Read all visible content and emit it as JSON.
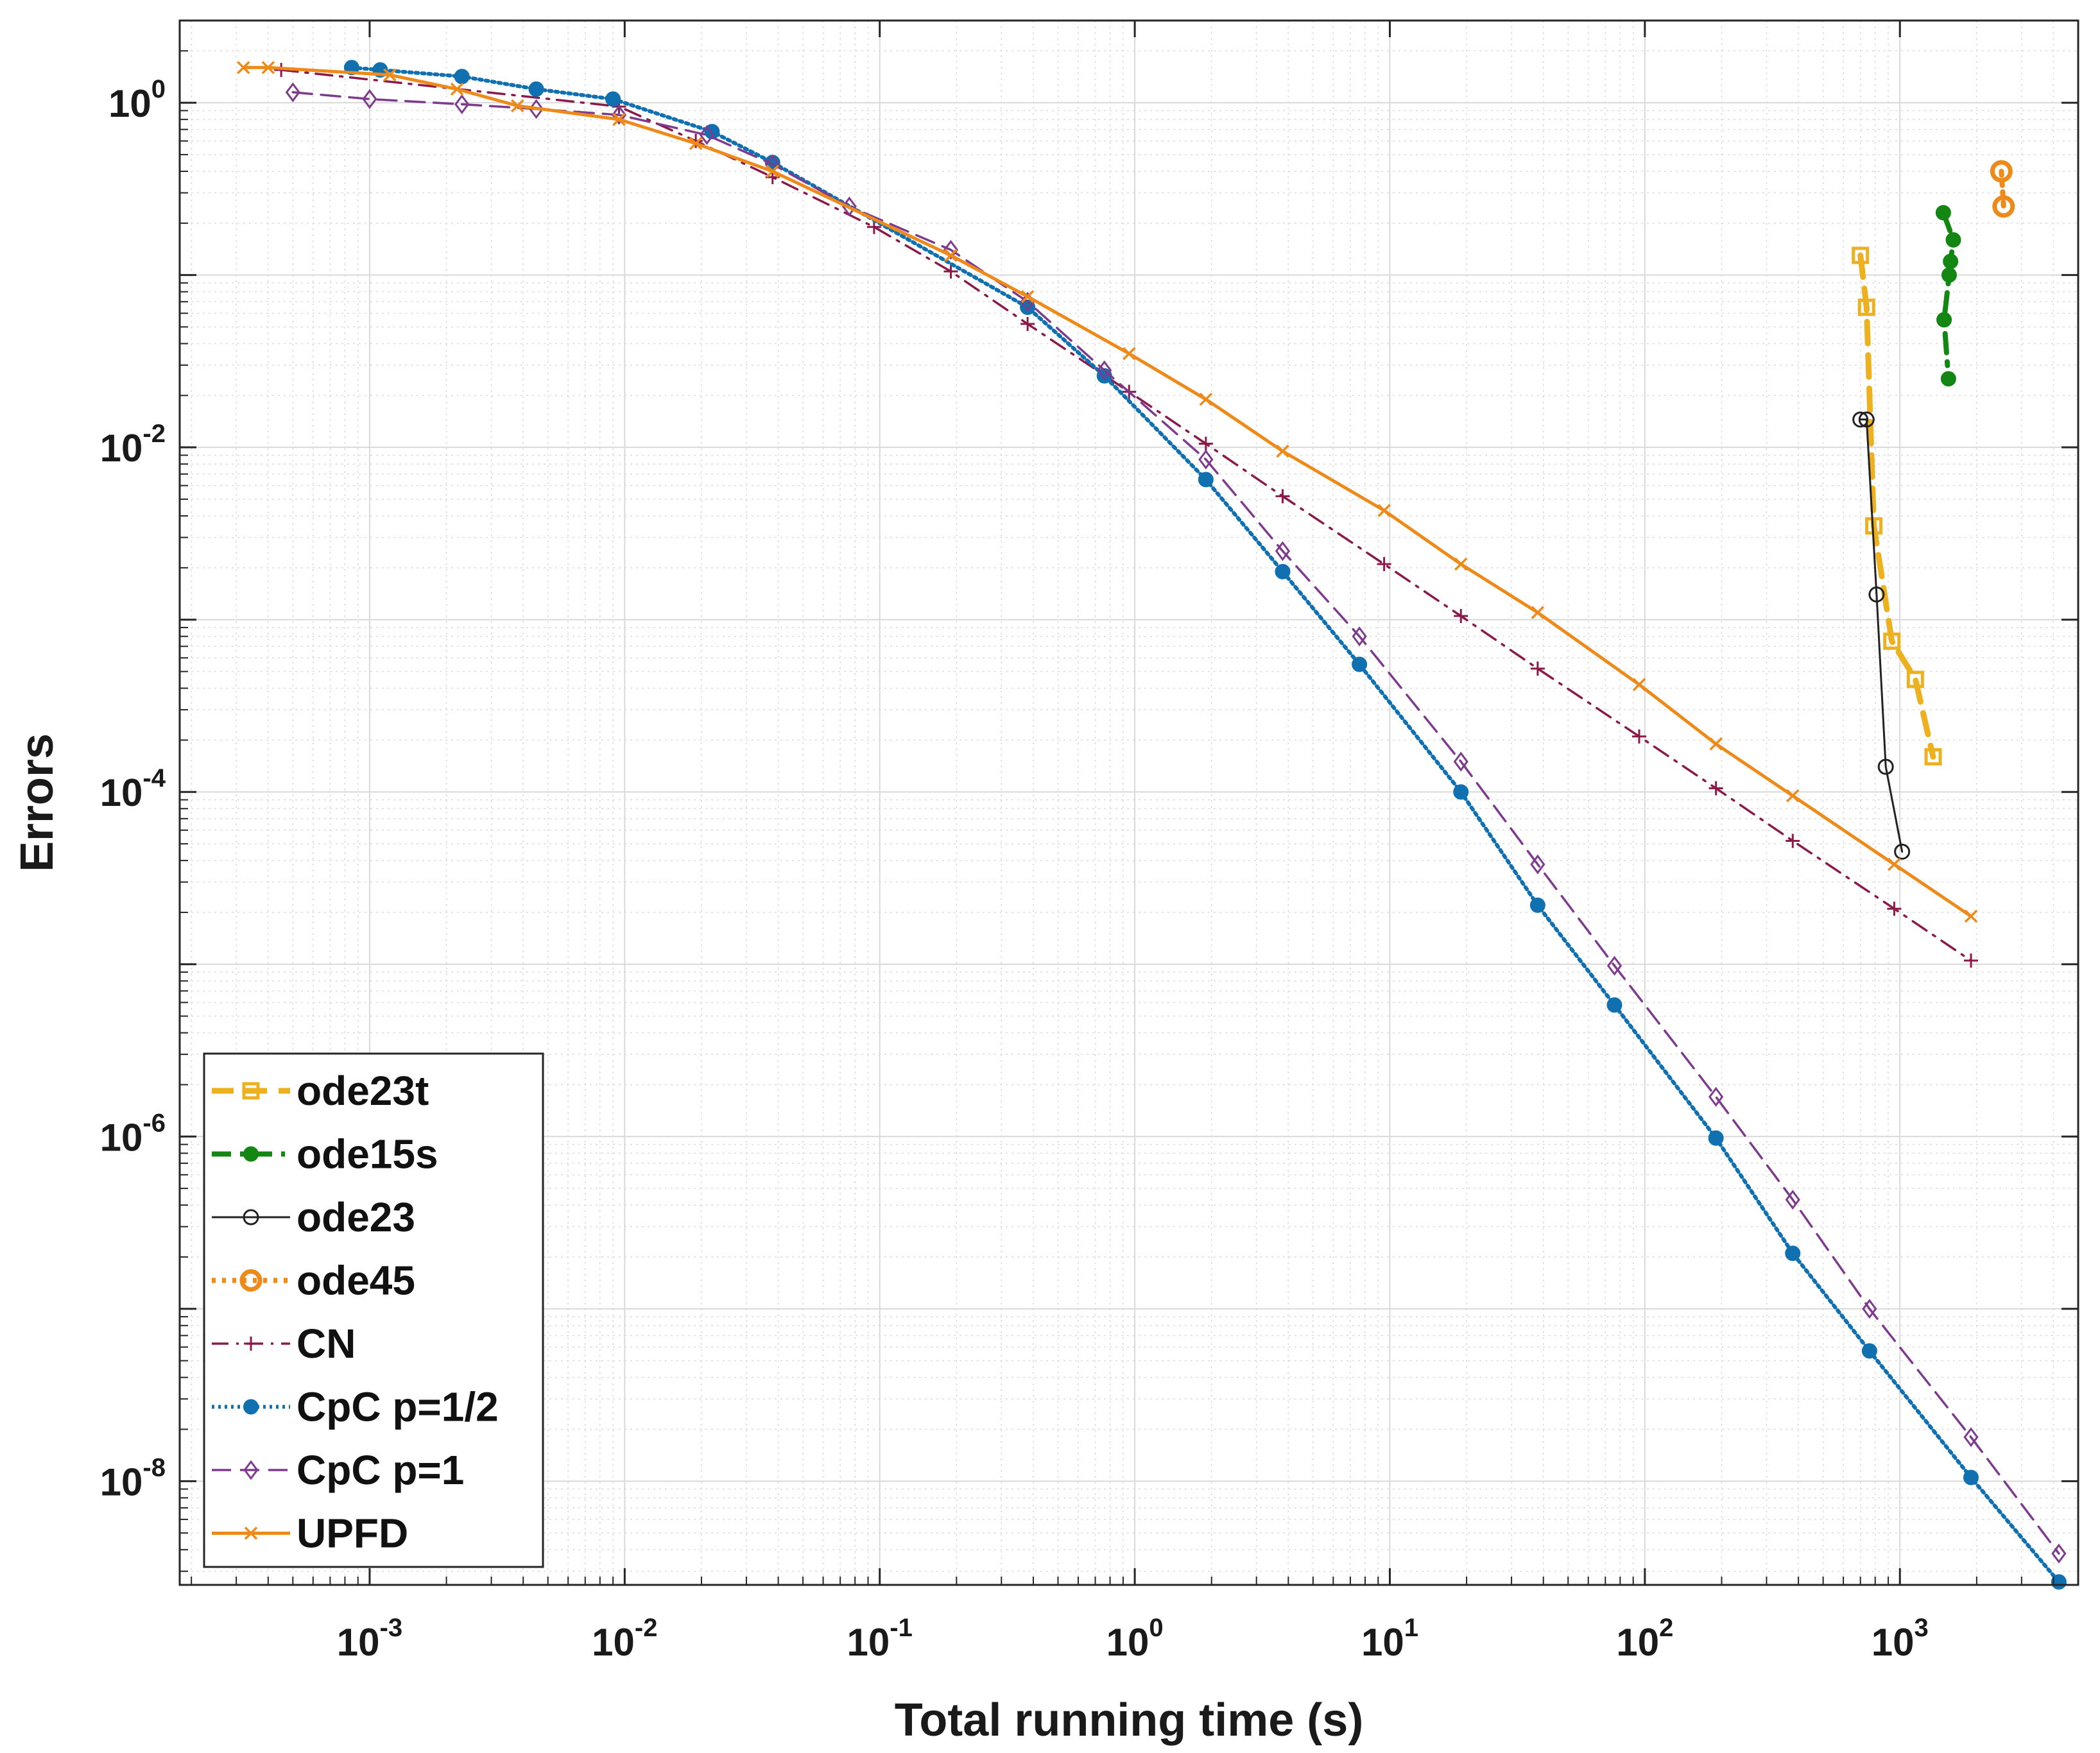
{
  "chart_data": {
    "type": "line",
    "title": "",
    "xlabel": "Total running time (s)",
    "ylabel": "Errors",
    "xscale": "log",
    "yscale": "log",
    "xlim": [
      0.00018,
      5000
    ],
    "ylim": [
      2.5e-09,
      3.0
    ],
    "grid": true,
    "minor_grid": true,
    "legend_position": "bottom-left",
    "x_ticks": [
      {
        "value": 0.001,
        "base": "10",
        "exp": "-3"
      },
      {
        "value": 0.01,
        "base": "10",
        "exp": "-2"
      },
      {
        "value": 0.1,
        "base": "10",
        "exp": "-1"
      },
      {
        "value": 1,
        "base": "10",
        "exp": "0"
      },
      {
        "value": 10,
        "base": "10",
        "exp": "1"
      },
      {
        "value": 100,
        "base": "10",
        "exp": "2"
      },
      {
        "value": 1000,
        "base": "10",
        "exp": "3"
      }
    ],
    "y_ticks": [
      {
        "value": 1,
        "base": "10",
        "exp": "0"
      },
      {
        "value": 0.01,
        "base": "10",
        "exp": "-2"
      },
      {
        "value": 0.0001,
        "base": "10",
        "exp": "-4"
      },
      {
        "value": 1e-06,
        "base": "10",
        "exp": "-6"
      },
      {
        "value": 1e-08,
        "base": "10",
        "exp": "-8"
      }
    ],
    "series": [
      {
        "name": "ode23t",
        "color": "#EDB120",
        "line": "dashed-thick",
        "marker": "square",
        "points": [
          [
            700,
            0.13
          ],
          [
            740,
            0.065
          ],
          [
            790,
            0.0035
          ],
          [
            930,
            0.00075
          ],
          [
            1150,
            0.00045
          ],
          [
            1350,
            0.00016
          ]
        ]
      },
      {
        "name": "ode15s",
        "color": "#138613",
        "line": "dashdot-thick",
        "marker": "dot",
        "points": [
          [
            1480,
            0.23
          ],
          [
            1620,
            0.16
          ],
          [
            1580,
            0.12
          ],
          [
            1560,
            0.1
          ],
          [
            1490,
            0.055
          ],
          [
            1550,
            0.025
          ]
        ]
      },
      {
        "name": "ode23",
        "color": "#222222",
        "line": "solid-thin",
        "marker": "circle-open",
        "points": [
          [
            700,
            0.0145
          ],
          [
            740,
            0.0145
          ],
          [
            810,
            0.0014
          ],
          [
            880,
            0.00014
          ],
          [
            1020,
            4.5e-05
          ]
        ]
      },
      {
        "name": "ode45",
        "color": "#EE8A1A",
        "line": "dotted-thick",
        "marker": "circle-thick",
        "points": [
          [
            2500,
            0.4
          ],
          [
            2550,
            0.25
          ]
        ]
      },
      {
        "name": "CN",
        "color": "#8A1A4A",
        "line": "dashdot",
        "marker": "plus",
        "points": [
          [
            0.00045,
            1.55
          ],
          [
            0.0095,
            0.95
          ],
          [
            0.019,
            0.6
          ],
          [
            0.038,
            0.37
          ],
          [
            0.095,
            0.19
          ],
          [
            0.19,
            0.105
          ],
          [
            0.38,
            0.052
          ],
          [
            0.95,
            0.021
          ],
          [
            1.9,
            0.0105
          ],
          [
            3.8,
            0.0052
          ],
          [
            9.5,
            0.0021
          ],
          [
            19,
            0.00105
          ],
          [
            38,
            0.00052
          ],
          [
            95,
            0.00021
          ],
          [
            190,
            0.000105
          ],
          [
            380,
            5.2e-05
          ],
          [
            950,
            2.1e-05
          ],
          [
            1900,
            1.05e-05
          ]
        ]
      },
      {
        "name": "CpC p=1/2",
        "color": "#1070B0",
        "line": "dotted",
        "marker": "dot",
        "points": [
          [
            0.00085,
            1.6
          ],
          [
            0.0011,
            1.55
          ],
          [
            0.0023,
            1.42
          ],
          [
            0.0045,
            1.2
          ],
          [
            0.009,
            1.05
          ],
          [
            0.022,
            0.68
          ],
          [
            0.038,
            0.45
          ],
          [
            0.38,
            0.065
          ],
          [
            0.76,
            0.026
          ],
          [
            1.9,
            0.0065
          ],
          [
            3.8,
            0.0019
          ],
          [
            7.6,
            0.00055
          ],
          [
            19,
            0.0001
          ],
          [
            38,
            2.2e-05
          ],
          [
            76,
            5.8e-06
          ],
          [
            190,
            9.8e-07
          ],
          [
            380,
            2.1e-07
          ],
          [
            760,
            5.7e-08
          ],
          [
            1900,
            1.05e-08
          ],
          [
            4200,
            2.6e-09
          ]
        ]
      },
      {
        "name": "CpC p=1",
        "color": "#7D3B8E",
        "line": "dashed",
        "marker": "diamond",
        "points": [
          [
            0.0005,
            1.15
          ],
          [
            0.001,
            1.05
          ],
          [
            0.0023,
            0.98
          ],
          [
            0.0045,
            0.92
          ],
          [
            0.0095,
            0.85
          ],
          [
            0.021,
            0.65
          ],
          [
            0.038,
            0.44
          ],
          [
            0.076,
            0.25
          ],
          [
            0.19,
            0.14
          ],
          [
            0.38,
            0.07
          ],
          [
            0.76,
            0.028
          ],
          [
            1.9,
            0.0085
          ],
          [
            3.8,
            0.0025
          ],
          [
            7.6,
            0.0008
          ],
          [
            19,
            0.00015
          ],
          [
            38,
            3.8e-05
          ],
          [
            76,
            9.8e-06
          ],
          [
            190,
            1.7e-06
          ],
          [
            380,
            4.3e-07
          ],
          [
            760,
            1e-07
          ],
          [
            1900,
            1.8e-08
          ],
          [
            4200,
            3.8e-09
          ]
        ]
      },
      {
        "name": "UPFD",
        "color": "#EE8A1A",
        "line": "solid",
        "marker": "x",
        "points": [
          [
            0.00032,
            1.6
          ],
          [
            0.0004,
            1.6
          ],
          [
            0.0012,
            1.45
          ],
          [
            0.0022,
            1.2
          ],
          [
            0.0038,
            0.96
          ],
          [
            0.0095,
            0.8
          ],
          [
            0.019,
            0.58
          ],
          [
            0.038,
            0.4
          ],
          [
            0.19,
            0.13
          ],
          [
            0.38,
            0.075
          ],
          [
            0.95,
            0.035
          ],
          [
            1.9,
            0.019
          ],
          [
            3.8,
            0.0095
          ],
          [
            9.5,
            0.0043
          ],
          [
            19,
            0.0021
          ],
          [
            38,
            0.0011
          ],
          [
            95,
            0.00042
          ],
          [
            190,
            0.00019
          ],
          [
            380,
            9.5e-05
          ],
          [
            950,
            3.8e-05
          ],
          [
            1900,
            1.9e-05
          ]
        ]
      }
    ]
  }
}
